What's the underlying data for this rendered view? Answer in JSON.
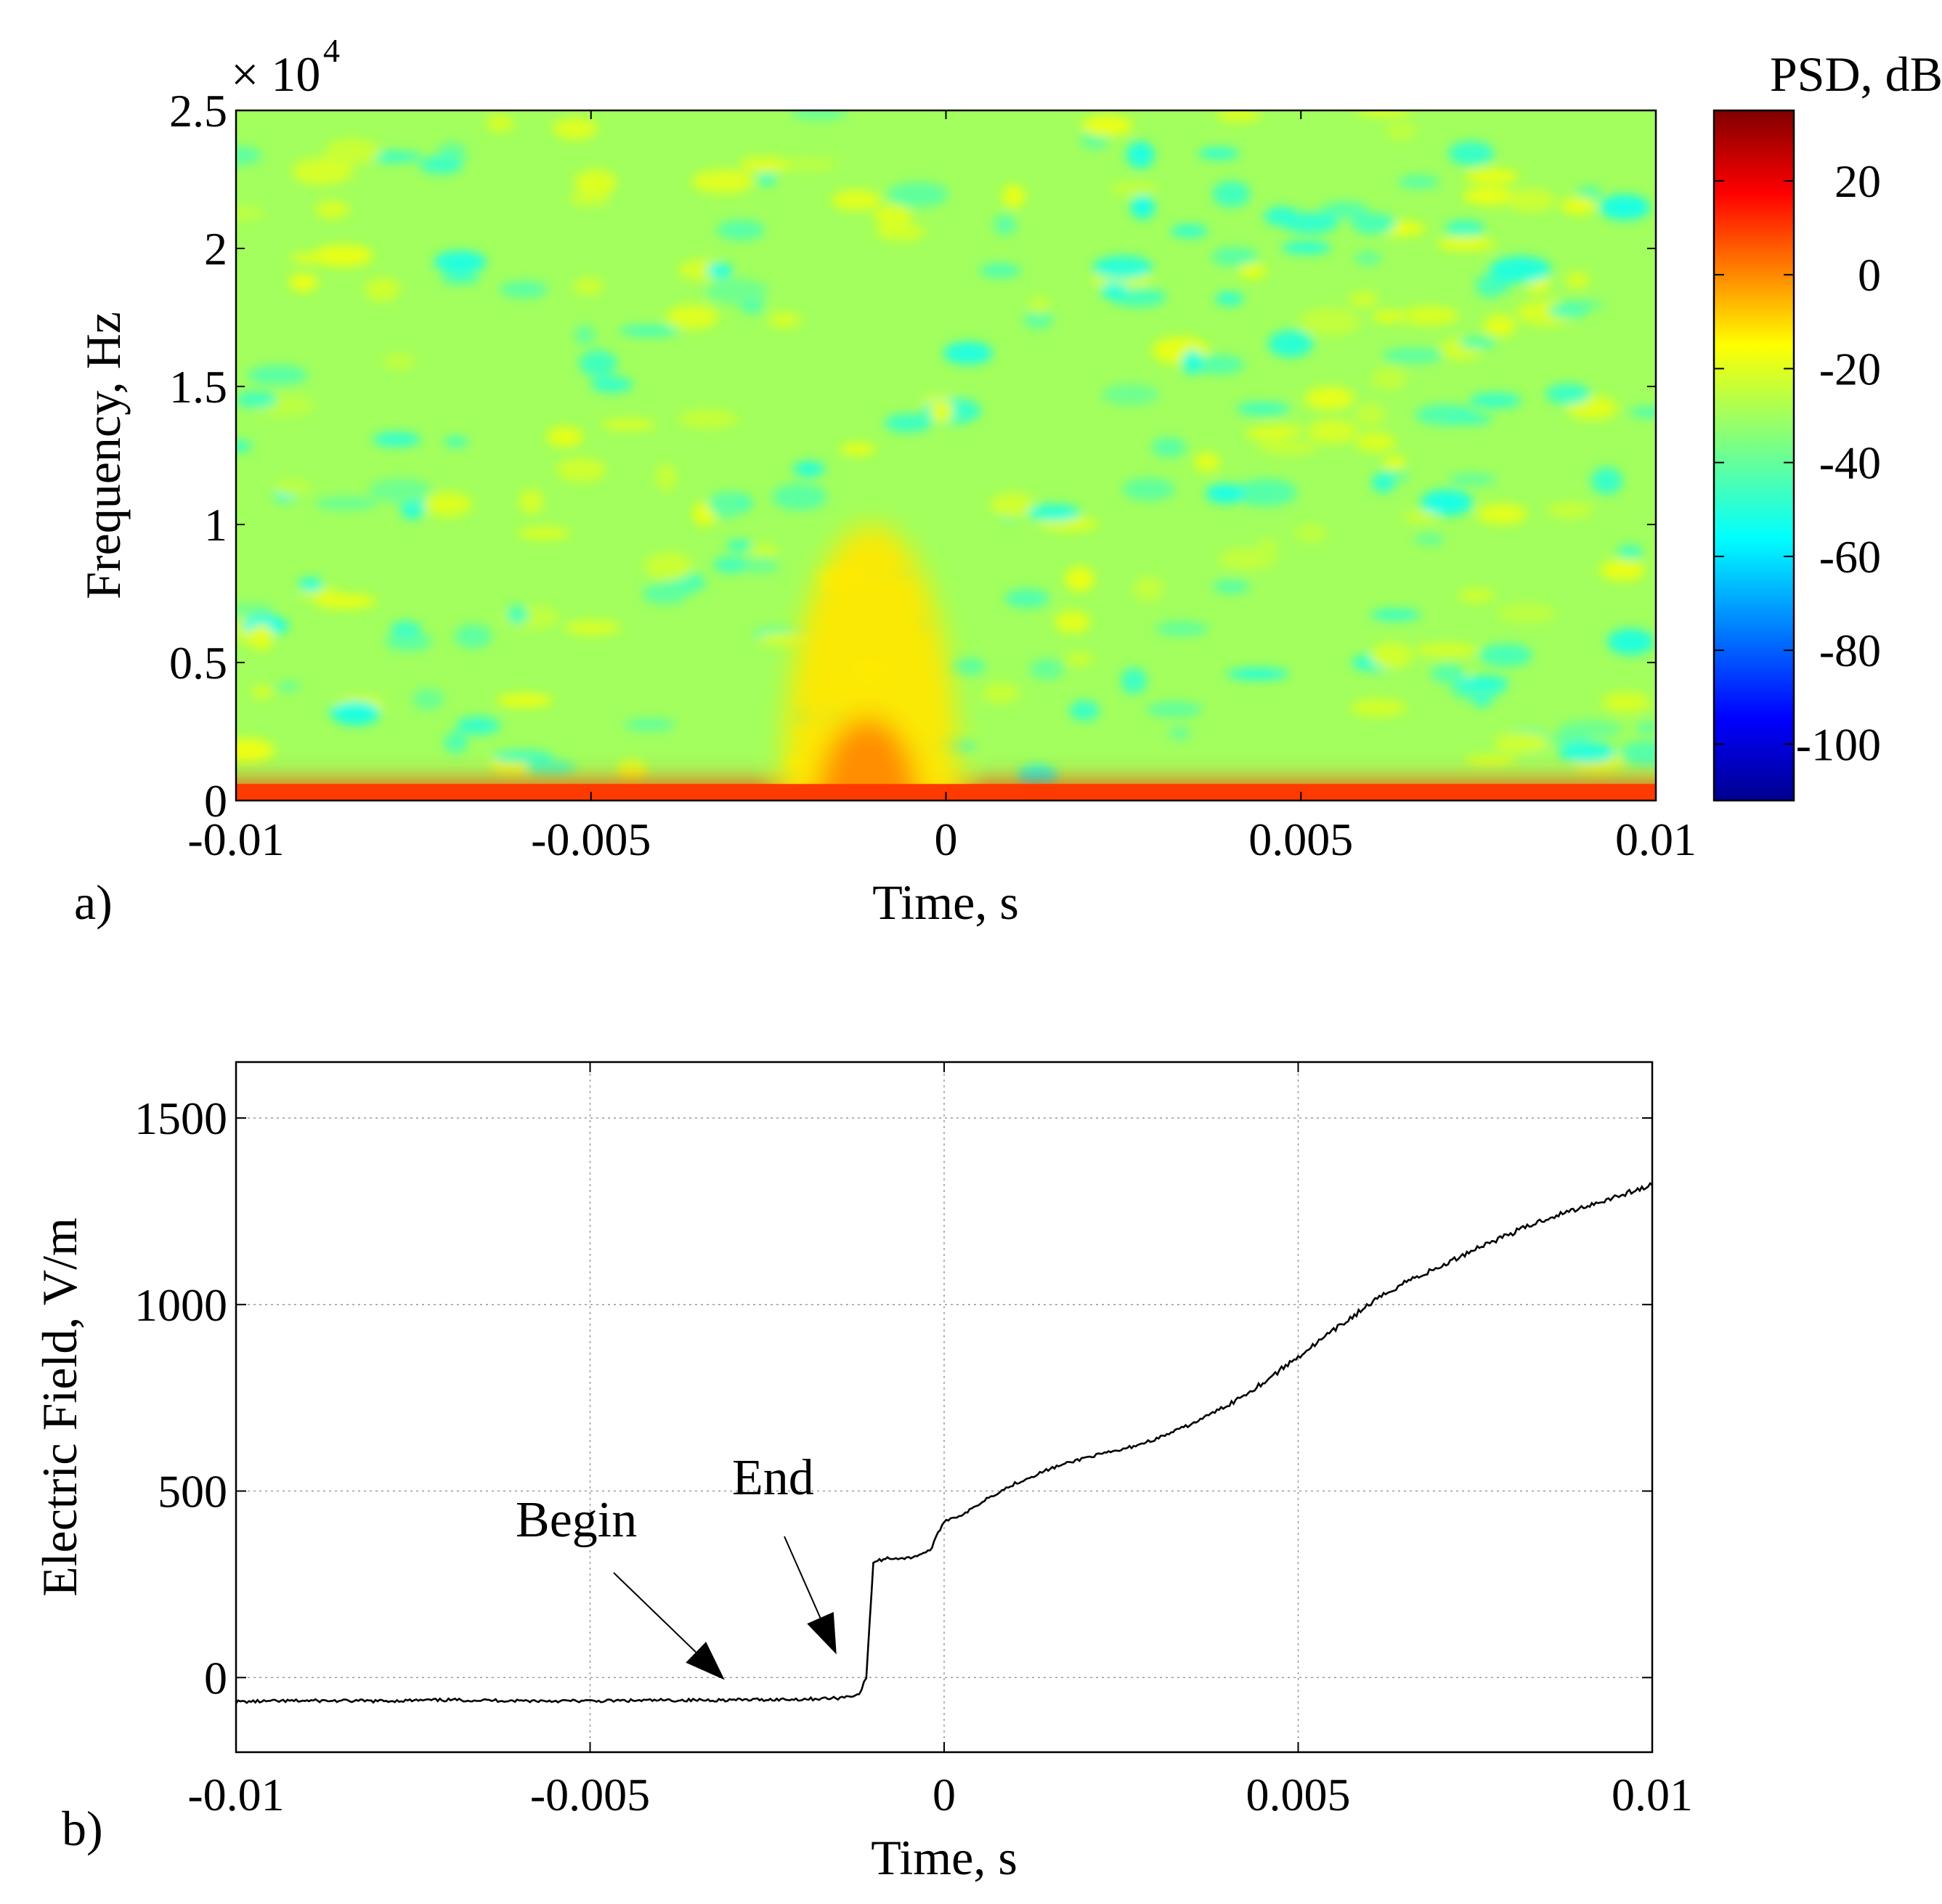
{
  "chart_data": [
    {
      "type": "heatmap",
      "panel_label": "a)",
      "xlabel": "Time, s",
      "ylabel": "Frequency, Hz",
      "xlim": [
        -0.01,
        0.01
      ],
      "ylim": [
        0,
        25000
      ],
      "x_ticks": [
        -0.01,
        -0.005,
        0,
        0.005,
        0.01
      ],
      "x_tick_labels": [
        "-0.01",
        "-0.005",
        "0",
        "0.005",
        "0.01"
      ],
      "y_ticks": [
        0,
        5000,
        10000,
        15000,
        20000,
        25000
      ],
      "y_tick_labels": [
        "0",
        "0.5",
        "1",
        "1.5",
        "2",
        "2.5"
      ],
      "y_exponent": {
        "base": "× 10",
        "power": "4"
      },
      "colorbar": {
        "label": "PSD, dB/Hz",
        "range": [
          -112,
          35
        ],
        "ticks": [
          20,
          0,
          -20,
          -40,
          -60,
          -80,
          -100
        ],
        "tick_labels": [
          "20",
          "0",
          "-20",
          "-40",
          "-60",
          "-80",
          "-100"
        ],
        "colormap": [
          "#00008f",
          "#0000ff",
          "#00ffff",
          "#7fff7f",
          "#ffff00",
          "#ff0000",
          "#800000"
        ]
      },
      "background_db": -30,
      "features": [
        {
          "description": "low-frequency band",
          "t_range": [
            -0.01,
            0.01
          ],
          "f_range": [
            0,
            600
          ],
          "psd_db": 10
        },
        {
          "description": "burst",
          "t_range": [
            -0.0023,
            0.0002
          ],
          "f_range": [
            0,
            10000
          ],
          "psd_db": -12
        },
        {
          "description": "burst core",
          "t_range": [
            -0.0018,
            -0.0004
          ],
          "f_range": [
            0,
            3000
          ],
          "psd_db": 0
        }
      ]
    },
    {
      "type": "line",
      "panel_label": "b)",
      "xlabel": "Time, s",
      "ylabel": "Electric Field, V/m",
      "xlim": [
        -0.01,
        0.01
      ],
      "ylim": [
        -200,
        1650
      ],
      "grid": true,
      "x_ticks": [
        -0.01,
        -0.005,
        0,
        0.005,
        0.01
      ],
      "x_tick_labels": [
        "-0.01",
        "-0.005",
        "0",
        "0.005",
        "0.01"
      ],
      "y_ticks": [
        0,
        500,
        1000,
        1500
      ],
      "y_tick_labels": [
        "0",
        "500",
        "1000",
        "1500"
      ],
      "series": [
        {
          "name": "Electric Field",
          "x": [
            -0.01,
            -0.009,
            -0.008,
            -0.007,
            -0.006,
            -0.005,
            -0.004,
            -0.003,
            -0.002,
            -0.0015,
            -0.0012,
            -0.0011,
            -0.00105,
            -0.001,
            -0.0008,
            -0.0005,
            -0.0002,
            0,
            0.0003,
            0.0006,
            0.001,
            0.0015,
            0.002,
            0.0025,
            0.003,
            0.0035,
            0.004,
            0.0045,
            0.005,
            0.0055,
            0.006,
            0.0065,
            0.007,
            0.0075,
            0.008,
            0.0085,
            0.009,
            0.0095,
            0.01
          ],
          "y": [
            -65,
            -62,
            -63,
            -60,
            -62,
            -63,
            -61,
            -60,
            -58,
            -55,
            -45,
            0,
            150,
            310,
            320,
            320,
            340,
            420,
            440,
            480,
            520,
            560,
            590,
            610,
            640,
            680,
            730,
            790,
            860,
            930,
            1000,
            1060,
            1100,
            1150,
            1190,
            1230,
            1260,
            1290,
            1320
          ]
        }
      ],
      "annotations": [
        {
          "text": "Begin",
          "points_to": [
            -0.0031,
            -55
          ]
        },
        {
          "text": "End",
          "points_to": [
            -0.0015,
            -45
          ]
        }
      ]
    }
  ]
}
